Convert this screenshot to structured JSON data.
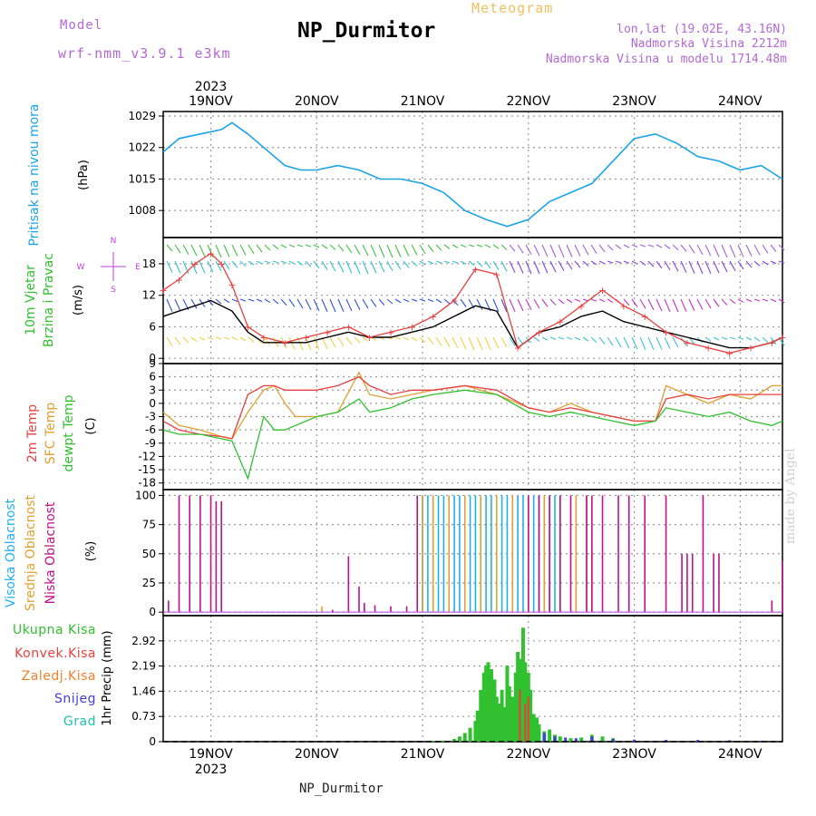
{
  "header": {
    "model_label": "Model",
    "model_value": "wrf-nmm_v3.9.1 e3km",
    "title": "NP_Durmitor",
    "subtitle": "Meteogram",
    "lonlat": "lon,lat (19.02E, 43.16N)",
    "elevation": "Nadmorska Visina 2212m",
    "model_elevation": "Nadmorska Visina u modelu 1714.48m"
  },
  "footer": {
    "station": "NP_Durmitor",
    "credit": "made by Angel"
  },
  "time_axis": {
    "year": "2023",
    "day_labels": [
      "19NOV",
      "20NOV",
      "21NOV",
      "22NOV",
      "23NOV",
      "24NOV"
    ],
    "start_day_offset": -0.45,
    "end_day_offset": 5.4
  },
  "colors": {
    "pressure": "#1aa3e8",
    "wind_speed_line": "#000000",
    "gust": "#e84040",
    "temp_2m": "#e84040",
    "temp_sfc": "#e0a030",
    "dewpoint": "#30c030",
    "cloud_high": "#20b0f0",
    "cloud_mid": "#e0a030",
    "cloud_low": "#c0108a",
    "precip_total": "#30c030",
    "precip_conv": "#e84040",
    "precip_large": "#f08030",
    "snow": "#4040e0",
    "hail": "#20c0b0"
  },
  "chart_data": [
    {
      "type": "line",
      "panel": "pressure",
      "ylabel_title": "Pritisak na nivou mora",
      "ylabel_unit": "(hPa)",
      "yticks": [
        1008,
        1015,
        1022,
        1029
      ],
      "ylim": [
        1002,
        1030
      ],
      "x": [
        -0.45,
        -0.3,
        -0.1,
        0.1,
        0.2,
        0.35,
        0.5,
        0.7,
        0.85,
        1.0,
        1.2,
        1.4,
        1.6,
        1.8,
        2.0,
        2.2,
        2.4,
        2.6,
        2.8,
        3.0,
        3.2,
        3.4,
        3.6,
        3.8,
        4.0,
        4.2,
        4.4,
        4.6,
        4.8,
        5.0,
        5.2,
        5.4
      ],
      "series": [
        {
          "values": [
            1021,
            1024,
            1025,
            1026,
            1027.5,
            1025,
            1022,
            1018,
            1017,
            1017,
            1018,
            1017,
            1015,
            1015,
            1014,
            1012,
            1008,
            1006,
            1004.5,
            1006,
            1010,
            1012,
            1014,
            1019,
            1024,
            1025,
            1023,
            1020,
            1019,
            1017,
            1018,
            1015
          ]
        }
      ]
    },
    {
      "type": "line",
      "panel": "wind",
      "ylabel_title_1": "10m Vjetar",
      "ylabel_title_2": "Brzina i Pravac",
      "ylabel_unit": "(m/s)",
      "compass_n": "N",
      "compass_s": "S",
      "compass_w": "W",
      "compass_e": "E",
      "yticks": [
        0,
        6,
        12,
        18
      ],
      "ylim": [
        -1,
        23
      ],
      "x": [
        -0.45,
        -0.3,
        -0.15,
        0.0,
        0.1,
        0.2,
        0.35,
        0.5,
        0.7,
        0.9,
        1.1,
        1.3,
        1.5,
        1.7,
        1.9,
        2.1,
        2.3,
        2.5,
        2.7,
        2.9,
        3.1,
        3.3,
        3.5,
        3.7,
        3.9,
        4.1,
        4.3,
        4.5,
        4.7,
        4.9,
        5.1,
        5.3,
        5.4
      ],
      "series": [
        {
          "name": "speed",
          "values": [
            8,
            9,
            10,
            11,
            10,
            9,
            5,
            3,
            3,
            3,
            4,
            5,
            4,
            4,
            5,
            6,
            8,
            10,
            9,
            2,
            5,
            6,
            8,
            9,
            7,
            6,
            5,
            4,
            3,
            2,
            2,
            3,
            4
          ]
        },
        {
          "name": "gust",
          "values": [
            13,
            15,
            18,
            20,
            18,
            14,
            6,
            4,
            3,
            4,
            5,
            6,
            4,
            5,
            6,
            8,
            11,
            17,
            16,
            2,
            5,
            7,
            10,
            13,
            10,
            8,
            5,
            3,
            2,
            1,
            2,
            3,
            4
          ]
        }
      ]
    },
    {
      "type": "line",
      "panel": "temperature",
      "ylabel_title_1": "2m Temp",
      "ylabel_title_2": "SFC Temp",
      "ylabel_title_3": "dewpt Temp",
      "ylabel_unit": "(C)",
      "yticks": [
        -18,
        -15,
        -12,
        -9,
        -6,
        -3,
        0,
        3,
        6,
        9
      ],
      "ylim": [
        -19.5,
        9
      ],
      "x": [
        -0.45,
        -0.3,
        -0.1,
        0.1,
        0.2,
        0.35,
        0.5,
        0.6,
        0.7,
        0.8,
        1.0,
        1.2,
        1.4,
        1.5,
        1.7,
        1.9,
        2.1,
        2.4,
        2.7,
        3.0,
        3.2,
        3.4,
        3.6,
        3.8,
        4.0,
        4.2,
        4.3,
        4.5,
        4.7,
        4.9,
        5.1,
        5.3,
        5.4
      ],
      "series": [
        {
          "name": "2m",
          "values": [
            -4,
            -6,
            -7,
            -7.5,
            -8,
            2,
            4,
            4,
            3,
            3,
            3,
            4,
            6,
            4,
            2,
            3,
            3,
            4,
            3,
            -1,
            -2,
            -1,
            -2,
            -3,
            -4,
            -4,
            1,
            2,
            1,
            2,
            2,
            2,
            2
          ]
        },
        {
          "name": "SFC",
          "values": [
            -2,
            -5,
            -6,
            -7.5,
            -8,
            -2,
            3,
            4,
            0,
            -3,
            -3,
            -2,
            7,
            2,
            1,
            2,
            3,
            4,
            2,
            -1,
            -2,
            0,
            -2,
            -3,
            -4,
            -4,
            4,
            2,
            0,
            2,
            1,
            4,
            4
          ]
        },
        {
          "name": "dewpt",
          "values": [
            -6,
            -7,
            -7,
            -8,
            -8.5,
            -17,
            -3,
            -6,
            -6,
            -5,
            -3,
            -2,
            1,
            -2,
            -1,
            1,
            2,
            3,
            2,
            -2,
            -3,
            -2,
            -3,
            -4,
            -5,
            -4,
            -1,
            -2,
            -3,
            -2,
            -4,
            -5,
            -4
          ]
        }
      ]
    },
    {
      "type": "bar",
      "panel": "clouds",
      "ylabel_title_1": "Visoka Oblacnost",
      "ylabel_title_2": "Srednja Oblacnost",
      "ylabel_title_3": "Niska Oblacnost",
      "ylabel_unit": "(%)",
      "yticks": [
        0,
        25,
        50,
        75,
        100
      ],
      "ylim": [
        -3,
        105
      ],
      "low_bars": [
        [
          -0.4,
          10
        ],
        [
          -0.3,
          100
        ],
        [
          -0.2,
          100
        ],
        [
          -0.1,
          100
        ],
        [
          0.0,
          100
        ],
        [
          0.05,
          95
        ],
        [
          0.1,
          95
        ],
        [
          1.15,
          2
        ],
        [
          1.3,
          48
        ],
        [
          1.4,
          22
        ],
        [
          1.45,
          8
        ],
        [
          1.55,
          6
        ],
        [
          1.7,
          5
        ],
        [
          1.85,
          5
        ],
        [
          1.95,
          100
        ],
        [
          3.0,
          100
        ],
        [
          3.1,
          100
        ],
        [
          3.2,
          100
        ],
        [
          3.3,
          100
        ],
        [
          3.4,
          100
        ],
        [
          3.55,
          100
        ],
        [
          3.6,
          100
        ],
        [
          3.7,
          100
        ],
        [
          3.85,
          100
        ],
        [
          3.95,
          100
        ],
        [
          4.1,
          100
        ],
        [
          4.3,
          100
        ],
        [
          4.45,
          50
        ],
        [
          4.5,
          50
        ],
        [
          4.55,
          50
        ],
        [
          4.65,
          100
        ],
        [
          4.75,
          50
        ],
        [
          4.8,
          50
        ],
        [
          5.3,
          10
        ],
        [
          5.4,
          44
        ]
      ],
      "mid_bars": [
        [
          1.05,
          5
        ],
        [
          1.45,
          5
        ],
        [
          2.0,
          100
        ],
        [
          2.1,
          100
        ],
        [
          2.25,
          100
        ],
        [
          2.4,
          100
        ],
        [
          2.55,
          100
        ],
        [
          2.7,
          100
        ],
        [
          2.85,
          100
        ],
        [
          3.0,
          100
        ],
        [
          3.15,
          100
        ],
        [
          3.3,
          100
        ],
        [
          3.45,
          100
        ],
        [
          3.55,
          100
        ],
        [
          3.6,
          50
        ]
      ],
      "high_bars": [
        [
          2.0,
          100
        ],
        [
          2.05,
          100
        ],
        [
          2.15,
          100
        ],
        [
          2.2,
          100
        ],
        [
          2.3,
          100
        ],
        [
          2.35,
          100
        ],
        [
          2.45,
          100
        ],
        [
          2.5,
          100
        ],
        [
          2.6,
          100
        ],
        [
          2.65,
          100
        ],
        [
          2.75,
          100
        ],
        [
          2.8,
          100
        ],
        [
          2.9,
          100
        ],
        [
          2.95,
          100
        ],
        [
          3.05,
          100
        ],
        [
          3.1,
          100
        ],
        [
          3.2,
          100
        ],
        [
          3.25,
          100
        ]
      ]
    },
    {
      "type": "bar",
      "panel": "precip",
      "ylabel_title": "1hr Precip (mm)",
      "yticks": [
        0,
        0.73,
        1.46,
        2.19,
        2.92
      ],
      "ylim": [
        0,
        3.65
      ],
      "legend": [
        "Ukupna Kisa",
        "Konvek.Kisa",
        "Zaledj.Kisa",
        "Snijeg",
        "Grad"
      ],
      "total_bars": [
        [
          2.1,
          0.02
        ],
        [
          2.2,
          0.03
        ],
        [
          2.3,
          0.08
        ],
        [
          2.35,
          0.15
        ],
        [
          2.4,
          0.25
        ],
        [
          2.45,
          0.4
        ],
        [
          2.5,
          0.6
        ],
        [
          2.52,
          0.9
        ],
        [
          2.55,
          1.5
        ],
        [
          2.58,
          2.0
        ],
        [
          2.6,
          2.2
        ],
        [
          2.62,
          2.3
        ],
        [
          2.65,
          2.1
        ],
        [
          2.68,
          1.8
        ],
        [
          2.7,
          1.3
        ],
        [
          2.72,
          1.1
        ],
        [
          2.75,
          1.5
        ],
        [
          2.78,
          1.0
        ],
        [
          2.8,
          2.2
        ],
        [
          2.82,
          1.6
        ],
        [
          2.85,
          1.3
        ],
        [
          2.88,
          2.0
        ],
        [
          2.9,
          2.6
        ],
        [
          2.92,
          2.4
        ],
        [
          2.95,
          3.3
        ],
        [
          2.97,
          2.3
        ],
        [
          3.0,
          2.0
        ],
        [
          3.02,
          1.5
        ],
        [
          3.05,
          0.8
        ],
        [
          3.08,
          0.7
        ],
        [
          3.1,
          0.5
        ],
        [
          3.15,
          0.3
        ],
        [
          3.2,
          0.35
        ],
        [
          3.25,
          0.2
        ],
        [
          3.3,
          0.15
        ],
        [
          3.4,
          0.1
        ],
        [
          3.5,
          0.12
        ],
        [
          3.6,
          0.2
        ],
        [
          3.7,
          0.15
        ],
        [
          3.8,
          0.1
        ]
      ],
      "conv_bars": [
        [
          2.92,
          1.5
        ],
        [
          2.97,
          1.1
        ],
        [
          3.0,
          1.3
        ]
      ],
      "snow_bars": [
        [
          3.15,
          0.25
        ],
        [
          3.25,
          0.15
        ],
        [
          3.35,
          0.12
        ],
        [
          3.45,
          0.1
        ],
        [
          3.6,
          0.15
        ],
        [
          3.8,
          0.08
        ],
        [
          4.0,
          0.06
        ],
        [
          4.3,
          0.05
        ],
        [
          4.6,
          0.05
        ],
        [
          4.9,
          0.04
        ],
        [
          5.2,
          0.03
        ]
      ]
    }
  ]
}
